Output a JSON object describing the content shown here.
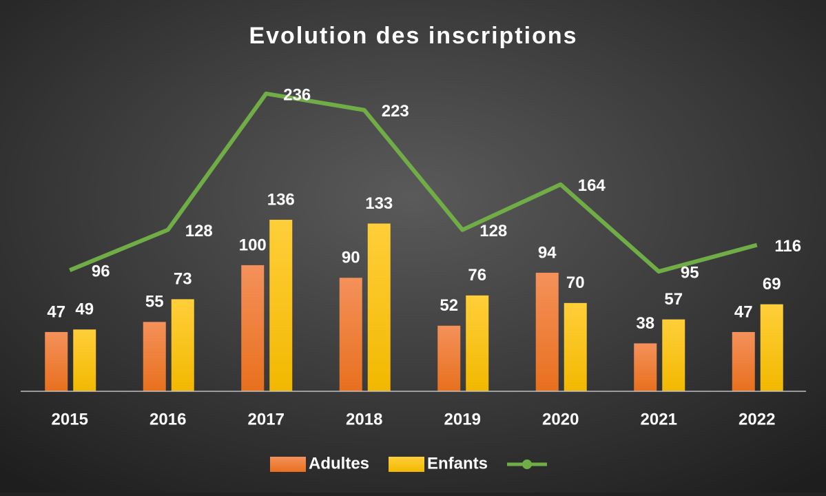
{
  "chart_data": {
    "type": "bar",
    "title": "Evolution des inscriptions",
    "categories": [
      "2015",
      "2016",
      "2017",
      "2018",
      "2019",
      "2020",
      "2021",
      "2022"
    ],
    "series": [
      {
        "name": "Adultes",
        "color": "#ed7d31",
        "values": [
          47,
          55,
          100,
          90,
          52,
          94,
          38,
          47
        ]
      },
      {
        "name": "Enfants",
        "color": "#ffc000",
        "values": [
          49,
          73,
          136,
          133,
          76,
          70,
          57,
          69
        ]
      },
      {
        "type": "line",
        "color": "#70ad47",
        "values": [
          96,
          128,
          236,
          223,
          128,
          164,
          95,
          116
        ]
      }
    ],
    "ylim": [
      0,
      260
    ],
    "legend": "bottom"
  }
}
